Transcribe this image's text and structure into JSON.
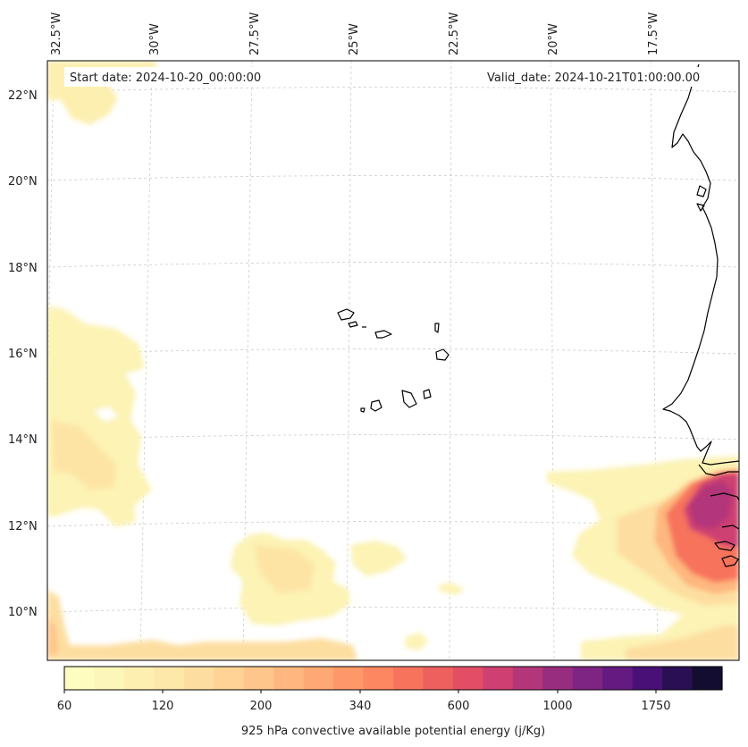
{
  "map": {
    "start_date": "Start date: 2024-10-20_00:00:00",
    "valid_date": "Valid_date: 2024-10-21T01:00:00.00",
    "lon_labels": [
      "32.5°W",
      "30°W",
      "27.5°W",
      "25°W",
      "22.5°W",
      "20°W",
      "17.5°W"
    ],
    "lat_labels": [
      "22°N",
      "20°N",
      "18°N",
      "16°N",
      "14°N",
      "12°N",
      "10°N"
    ]
  },
  "colorbar": {
    "title": "925 hPa convective available potential energy (j/Kg)",
    "tick_labels": [
      "60",
      "120",
      "200",
      "340",
      "600",
      "1000",
      "1750"
    ],
    "colors": [
      "#fcfdbf",
      "#fcf6b8",
      "#fdefb0",
      "#fde7a9",
      "#fddea0",
      "#fed395",
      "#fec68a",
      "#feb77e",
      "#fea873",
      "#fe9869",
      "#fc8761",
      "#f7735c",
      "#ee605e",
      "#e34e65",
      "#cd4071",
      "#b3367a",
      "#982d80",
      "#7e2482",
      "#641a80",
      "#491078",
      "#2a0f55",
      "#120d31"
    ]
  }
}
